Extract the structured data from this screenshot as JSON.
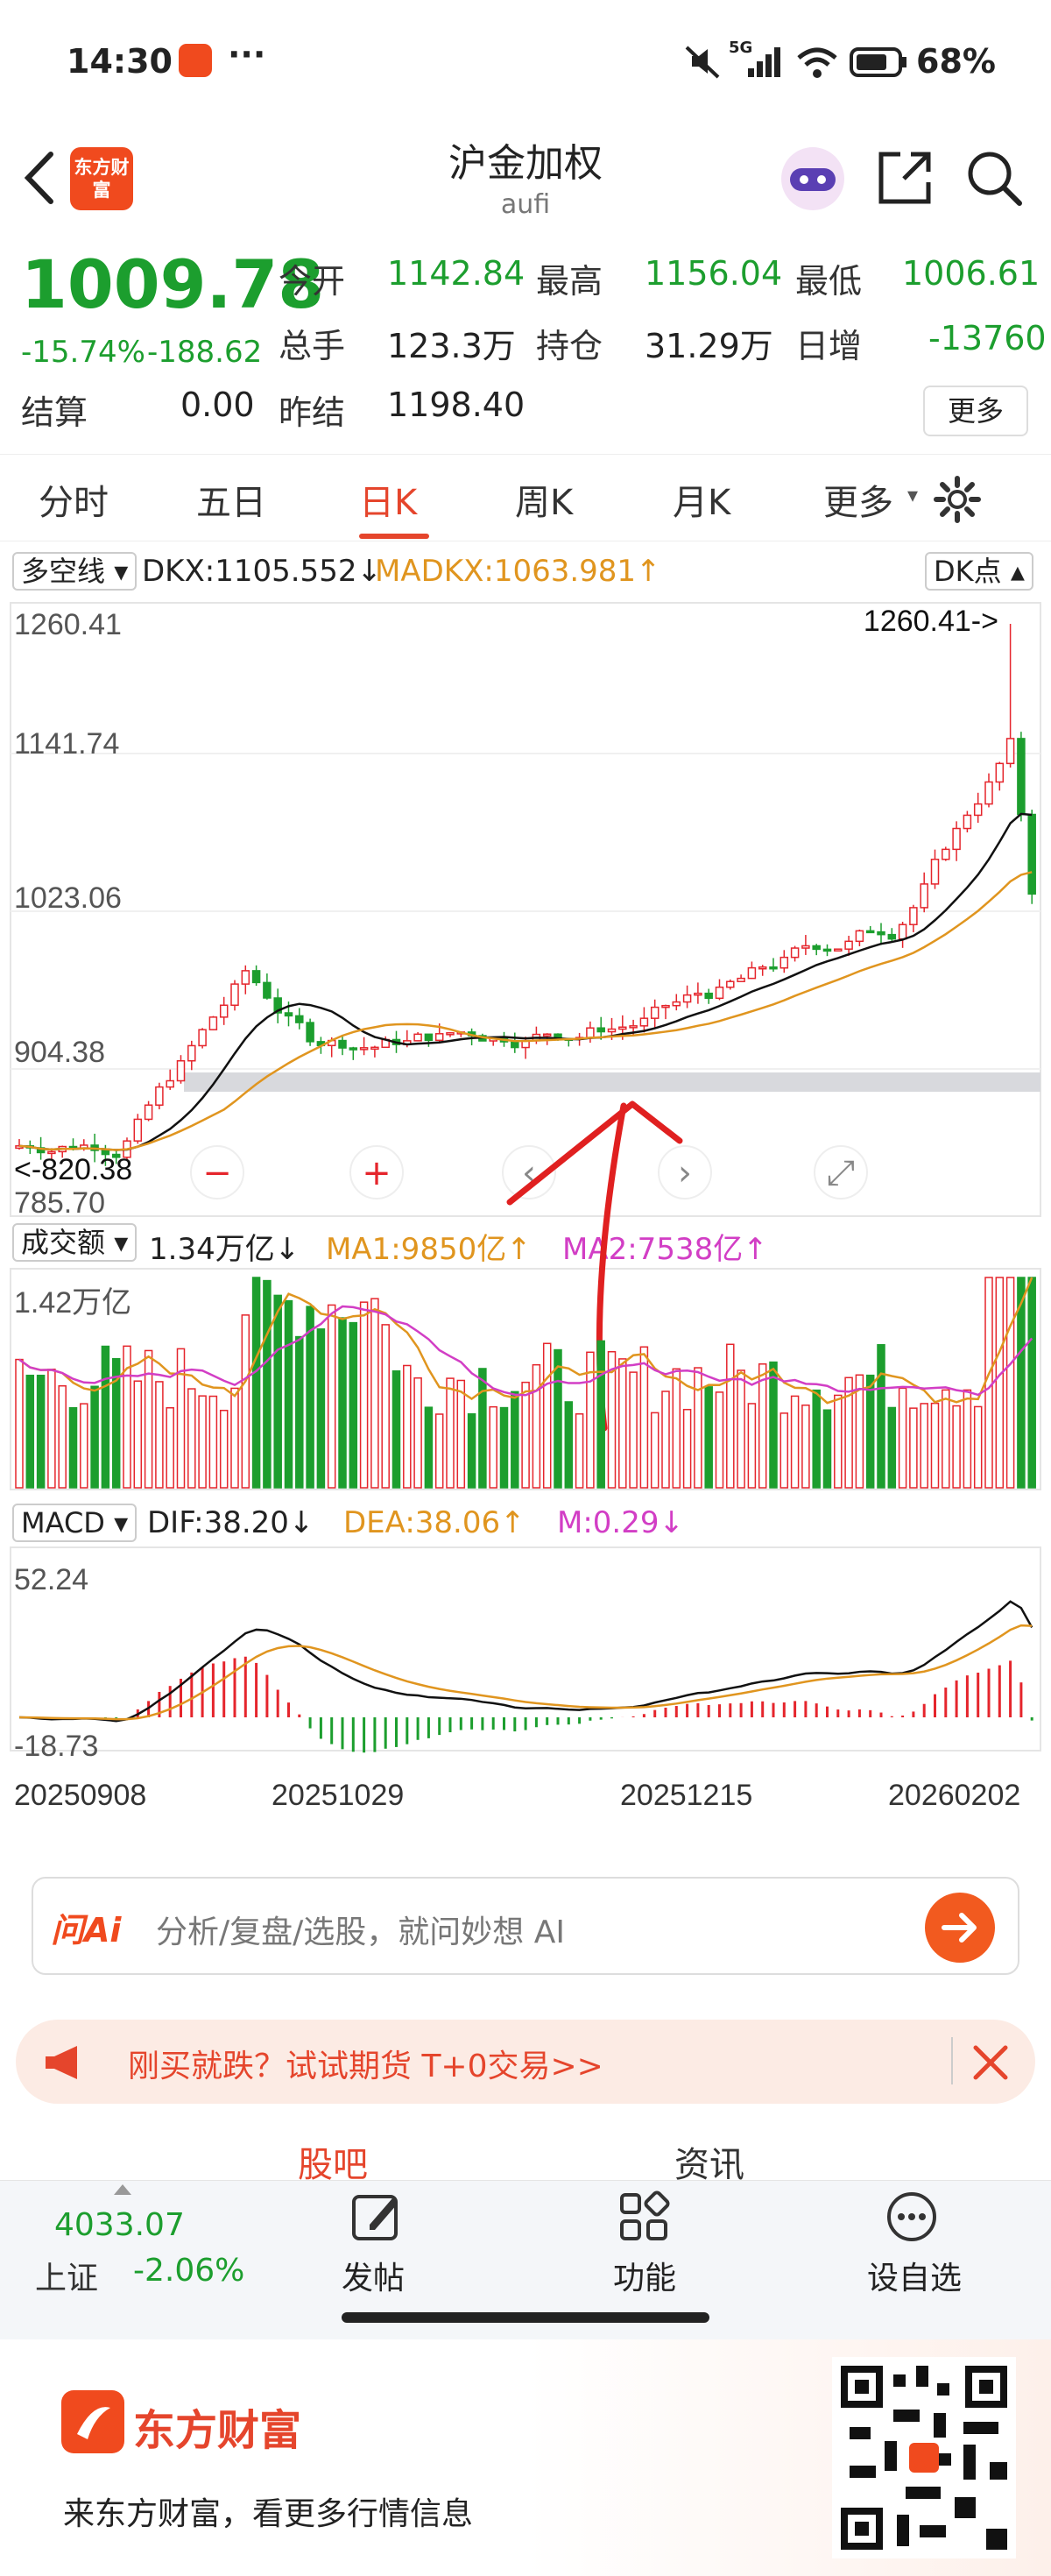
{
  "status": {
    "time": "14:30",
    "more": "···",
    "network": "5G",
    "battery": "68%"
  },
  "header": {
    "title": "沪金加权",
    "subtitle": "aufi"
  },
  "quote": {
    "price": "1009.78",
    "change_pct": "-15.74%",
    "change": "-188.62",
    "fields": [
      {
        "label": "今开",
        "value": "1142.84",
        "color": "#1c9e2e"
      },
      {
        "label": "最高",
        "value": "1156.04",
        "color": "#1c9e2e"
      },
      {
        "label": "最低",
        "value": "1006.61",
        "color": "#1c9e2e"
      },
      {
        "label": "总手",
        "value": "123.3万",
        "color": "#222222"
      },
      {
        "label": "持仓",
        "value": "31.29万",
        "color": "#222222"
      },
      {
        "label": "日增",
        "value": "-13760",
        "color": "#1c9e2e"
      },
      {
        "label": "结算",
        "value": "0.00",
        "color": "#222222"
      },
      {
        "label": "昨结",
        "value": "1198.40",
        "color": "#222222"
      }
    ],
    "more_button": "更多"
  },
  "tabs": [
    "分时",
    "五日",
    "日K",
    "周K",
    "月K",
    "更多"
  ],
  "tabs_active": 2,
  "kline": {
    "indicator_name": "多空线",
    "dkx_text": "DKX:1105.552↓",
    "madkx_text": "MADKX:1063.981↑",
    "dk_button": "DK点",
    "y_ticks": [
      "1260.41",
      "1141.74",
      "1023.06",
      "904.38",
      "785.70"
    ],
    "max_annotation": "1260.41->",
    "min_annotation": "<-820.38"
  },
  "volume": {
    "name": "成交额",
    "value": "1.34万亿↓",
    "ma1": "MA1:9850亿↑",
    "ma2": "MA2:7538亿↑",
    "y_top": "1.42万亿"
  },
  "macd": {
    "name": "MACD",
    "dif": "DIF:38.20↓",
    "dea": "DEA:38.06↑",
    "m": "M:0.29↓",
    "y_top": "52.24",
    "y_bottom": "-18.73"
  },
  "dates": [
    "20250908",
    "20251029",
    "20251215",
    "20260202"
  ],
  "ai": {
    "logo": "问Ai",
    "placeholder": "分析/复盘/选股，就问妙想 AI"
  },
  "promo": {
    "text": "刚买就跌？试试期货 T+0交易>>"
  },
  "subtabs": [
    "股吧",
    "资讯"
  ],
  "bottom": {
    "index_value": "4033.07",
    "index_name": "上证",
    "index_change": "-2.06%",
    "post": "发帖",
    "func": "功能",
    "watch": "设自选"
  },
  "footer": {
    "brand": "东方财富",
    "brand_logo": "东方财富",
    "slogan": "来东方财富，看更多行情信息",
    "watermark": "东方财富"
  },
  "colors": {
    "up": "#e5252c",
    "down": "#1c9e2e",
    "accent": "#e5452c",
    "ma1": "#e0951f",
    "ma2": "#d23ec5"
  }
}
